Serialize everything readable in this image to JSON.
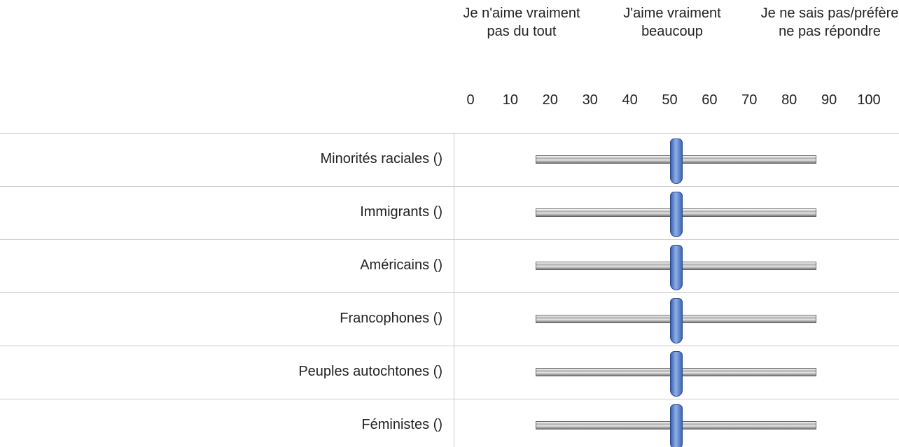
{
  "header": {
    "labels": [
      "Je n'aime vraiment pas du tout",
      "J'aime vraiment beaucoup",
      "Je ne sais pas/préfère ne pas répondre"
    ]
  },
  "scale": {
    "ticks": [
      0,
      10,
      20,
      30,
      40,
      50,
      60,
      70,
      80,
      90,
      100
    ],
    "range": [
      0,
      100
    ]
  },
  "rows": [
    {
      "label": "Minorités raciales ()",
      "value": 50
    },
    {
      "label": "Immigrants ()",
      "value": 50
    },
    {
      "label": "Américains ()",
      "value": 50
    },
    {
      "label": "Francophones ()",
      "value": 50
    },
    {
      "label": "Peuples autochtones ()",
      "value": 50
    },
    {
      "label": "Féministes ()",
      "value": 50
    }
  ]
}
